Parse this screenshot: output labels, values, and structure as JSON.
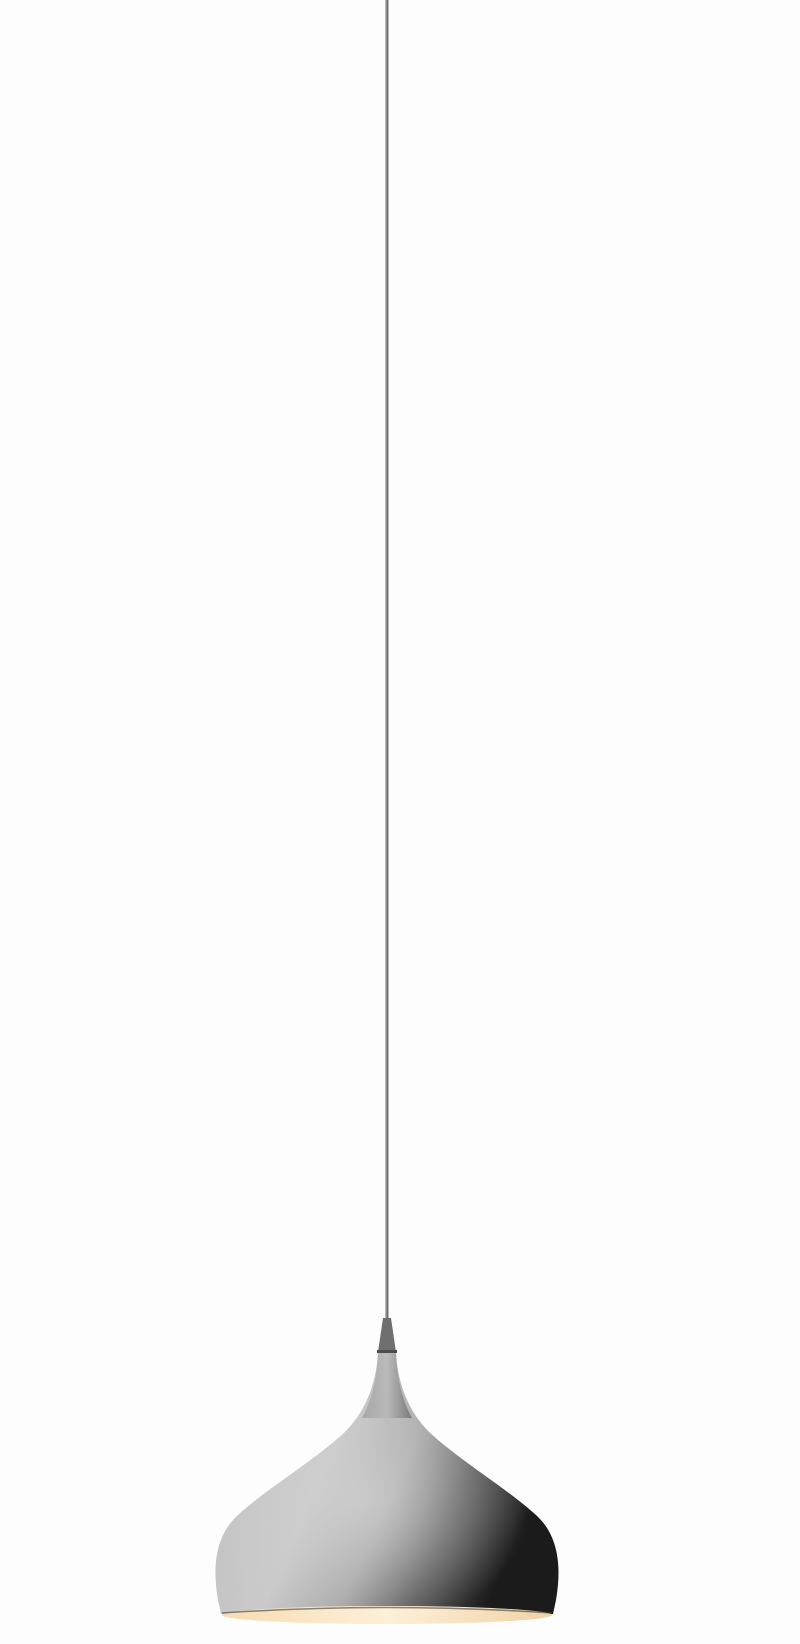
{
  "image": {
    "subject": "pendant-lamp",
    "background_color": "#fdfdfd",
    "colors": {
      "cord": "#6e6e6e",
      "shade_light": "#c8c8c8",
      "shade_mid": "#a9a9a9",
      "shade_dark": "#1e1e1e",
      "inner_glow": "#fbe8c8"
    }
  }
}
